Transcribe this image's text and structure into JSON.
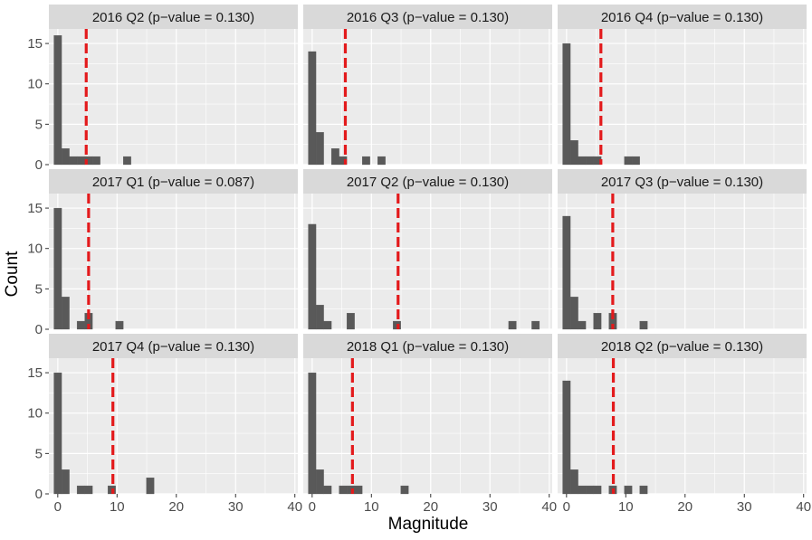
{
  "chart_data": {
    "type": "histogram-facets",
    "xlabel": "Magnitude",
    "ylabel": "Count",
    "xlim": [
      -1.5,
      40.5
    ],
    "ylim": [
      0,
      16.8
    ],
    "x_ticks": [
      0,
      10,
      20,
      30,
      40
    ],
    "y_ticks": [
      0,
      5,
      10,
      15
    ],
    "bin_width": 1.3,
    "colors": {
      "bar": "#595959",
      "vline": "#e31a1c",
      "panel": "#ebebeb",
      "strip": "#d9d9d9"
    },
    "panels": [
      {
        "title": "2016 Q2 (p−value = 0.130)",
        "vline": 4.8,
        "bins": [
          {
            "x": 0,
            "count": 16
          },
          {
            "x": 1.3,
            "count": 2
          },
          {
            "x": 2.6,
            "count": 1
          },
          {
            "x": 3.9,
            "count": 1
          },
          {
            "x": 5.2,
            "count": 1
          },
          {
            "x": 6.5,
            "count": 1
          },
          {
            "x": 11.7,
            "count": 1
          }
        ]
      },
      {
        "title": "2016 Q3 (p−value = 0.130)",
        "vline": 5.6,
        "bins": [
          {
            "x": 0,
            "count": 14
          },
          {
            "x": 1.3,
            "count": 4
          },
          {
            "x": 3.9,
            "count": 2
          },
          {
            "x": 5.2,
            "count": 1
          },
          {
            "x": 9.1,
            "count": 1
          },
          {
            "x": 11.7,
            "count": 1
          }
        ]
      },
      {
        "title": "2016 Q4 (p−value = 0.130)",
        "vline": 5.8,
        "bins": [
          {
            "x": 0,
            "count": 15
          },
          {
            "x": 1.3,
            "count": 3
          },
          {
            "x": 2.6,
            "count": 1
          },
          {
            "x": 3.9,
            "count": 1
          },
          {
            "x": 5.2,
            "count": 1
          },
          {
            "x": 10.4,
            "count": 1
          },
          {
            "x": 11.7,
            "count": 1
          }
        ]
      },
      {
        "title": "2017 Q1 (p−value = 0.087)",
        "vline": 5.2,
        "bins": [
          {
            "x": 0,
            "count": 15
          },
          {
            "x": 1.3,
            "count": 4
          },
          {
            "x": 3.9,
            "count": 1
          },
          {
            "x": 5.2,
            "count": 2
          },
          {
            "x": 10.4,
            "count": 1
          }
        ]
      },
      {
        "title": "2017 Q2 (p−value = 0.130)",
        "vline": 14.5,
        "bins": [
          {
            "x": 0,
            "count": 13
          },
          {
            "x": 1.3,
            "count": 3
          },
          {
            "x": 2.6,
            "count": 1
          },
          {
            "x": 6.5,
            "count": 2
          },
          {
            "x": 14.3,
            "count": 1
          },
          {
            "x": 33.8,
            "count": 1
          },
          {
            "x": 37.7,
            "count": 1
          }
        ]
      },
      {
        "title": "2017 Q3 (p−value = 0.130)",
        "vline": 7.8,
        "bins": [
          {
            "x": 0,
            "count": 14
          },
          {
            "x": 1.3,
            "count": 4
          },
          {
            "x": 2.6,
            "count": 1
          },
          {
            "x": 5.2,
            "count": 2
          },
          {
            "x": 7.8,
            "count": 2
          },
          {
            "x": 13,
            "count": 1
          }
        ]
      },
      {
        "title": "2017 Q4 (p−value = 0.130)",
        "vline": 9.3,
        "bins": [
          {
            "x": 0,
            "count": 15
          },
          {
            "x": 1.3,
            "count": 3
          },
          {
            "x": 3.9,
            "count": 1
          },
          {
            "x": 5.2,
            "count": 1
          },
          {
            "x": 9.1,
            "count": 1
          },
          {
            "x": 15.6,
            "count": 2
          }
        ]
      },
      {
        "title": "2018 Q1 (p−value = 0.130)",
        "vline": 6.8,
        "bins": [
          {
            "x": 0,
            "count": 15
          },
          {
            "x": 1.3,
            "count": 3
          },
          {
            "x": 2.6,
            "count": 1
          },
          {
            "x": 5.2,
            "count": 1
          },
          {
            "x": 6.5,
            "count": 1
          },
          {
            "x": 7.8,
            "count": 1
          },
          {
            "x": 15.6,
            "count": 1
          }
        ]
      },
      {
        "title": "2018 Q2 (p−value = 0.130)",
        "vline": 7.9,
        "bins": [
          {
            "x": 0,
            "count": 14
          },
          {
            "x": 1.3,
            "count": 3
          },
          {
            "x": 2.6,
            "count": 1
          },
          {
            "x": 3.9,
            "count": 1
          },
          {
            "x": 5.2,
            "count": 1
          },
          {
            "x": 7.8,
            "count": 1
          },
          {
            "x": 10.4,
            "count": 1
          },
          {
            "x": 13,
            "count": 1
          }
        ]
      }
    ]
  }
}
